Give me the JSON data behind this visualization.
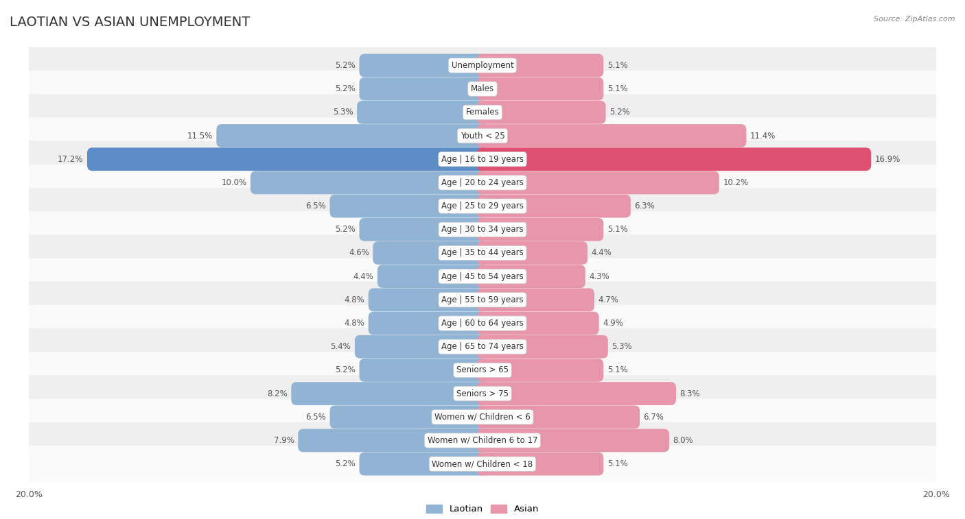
{
  "title": "LAOTIAN VS ASIAN UNEMPLOYMENT",
  "source": "Source: ZipAtlas.com",
  "categories": [
    "Unemployment",
    "Males",
    "Females",
    "Youth < 25",
    "Age | 16 to 19 years",
    "Age | 20 to 24 years",
    "Age | 25 to 29 years",
    "Age | 30 to 34 years",
    "Age | 35 to 44 years",
    "Age | 45 to 54 years",
    "Age | 55 to 59 years",
    "Age | 60 to 64 years",
    "Age | 65 to 74 years",
    "Seniors > 65",
    "Seniors > 75",
    "Women w/ Children < 6",
    "Women w/ Children 6 to 17",
    "Women w/ Children < 18"
  ],
  "laotian": [
    5.2,
    5.2,
    5.3,
    11.5,
    17.2,
    10.0,
    6.5,
    5.2,
    4.6,
    4.4,
    4.8,
    4.8,
    5.4,
    5.2,
    8.2,
    6.5,
    7.9,
    5.2
  ],
  "asian": [
    5.1,
    5.1,
    5.2,
    11.4,
    16.9,
    10.2,
    6.3,
    5.1,
    4.4,
    4.3,
    4.7,
    4.9,
    5.3,
    5.1,
    8.3,
    6.7,
    8.0,
    5.1
  ],
  "max_val": 20.0,
  "laotian_color": "#92b4d4",
  "asian_color": "#e896aa",
  "highlight_row": 4,
  "highlight_laotian_color": "#5b8ec7",
  "highlight_asian_color": "#e05070",
  "title_fontsize": 14,
  "label_fontsize": 8.5,
  "value_fontsize": 8.5,
  "axis_fontsize": 9,
  "legend_laotian": "Laotian",
  "legend_asian": "Asian",
  "row_bg_light": "#efefef",
  "row_bg_white": "#fafafa"
}
